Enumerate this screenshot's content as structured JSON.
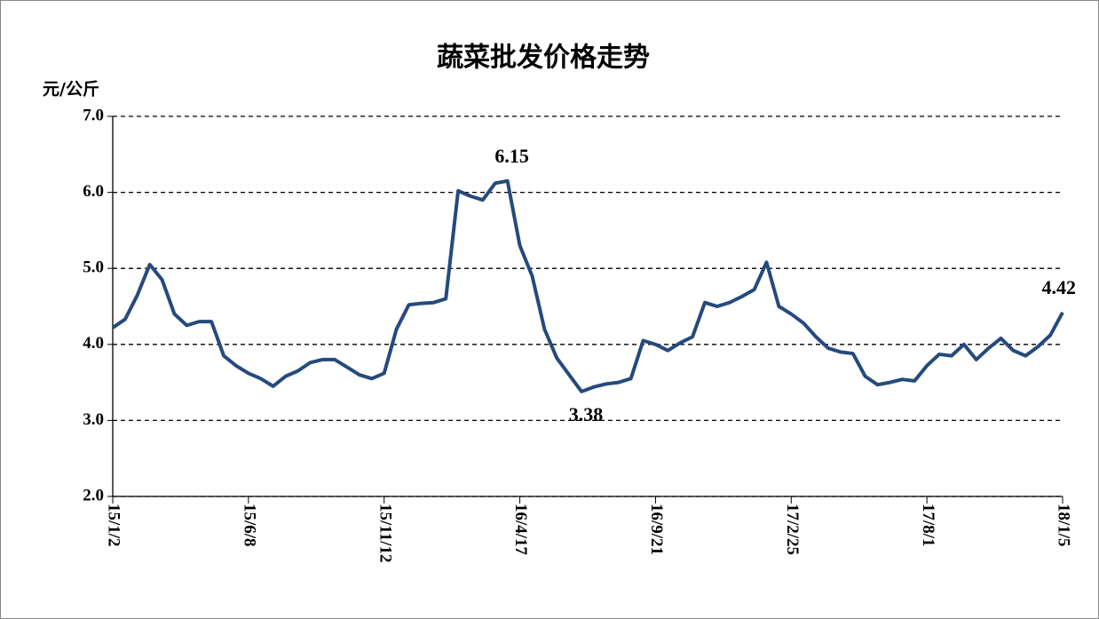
{
  "chart_data": {
    "type": "line",
    "title": "蔬菜批发价格走势",
    "y_label": "元/公斤",
    "categories": [
      "15/1/2",
      null,
      null,
      null,
      null,
      null,
      null,
      null,
      null,
      null,
      null,
      "15/6/8",
      null,
      null,
      null,
      null,
      null,
      null,
      null,
      null,
      null,
      null,
      "15/11/12",
      null,
      null,
      null,
      null,
      null,
      null,
      null,
      null,
      null,
      null,
      "16/4/17",
      null,
      null,
      null,
      null,
      null,
      null,
      null,
      null,
      null,
      null,
      "16/9/21",
      null,
      null,
      null,
      null,
      null,
      null,
      null,
      null,
      null,
      null,
      "17/2/25",
      null,
      null,
      null,
      null,
      null,
      null,
      null,
      null,
      null,
      null,
      "17/8/1",
      null,
      null,
      null,
      null,
      null,
      null,
      null,
      null,
      null,
      null,
      "18/1/5"
    ],
    "series": [
      {
        "color": "#254a7d",
        "values": [
          4.22,
          4.33,
          4.65,
          5.05,
          4.85,
          4.4,
          4.25,
          4.3,
          4.3,
          3.85,
          3.72,
          3.62,
          3.55,
          3.45,
          3.58,
          3.65,
          3.76,
          3.8,
          3.8,
          3.7,
          3.6,
          3.55,
          3.62,
          4.2,
          4.52,
          4.54,
          4.55,
          4.6,
          6.02,
          5.95,
          5.9,
          6.12,
          6.15,
          5.3,
          4.9,
          4.2,
          3.82,
          3.6,
          3.38,
          3.44,
          3.48,
          3.5,
          3.55,
          4.05,
          4.0,
          3.92,
          4.02,
          4.1,
          4.55,
          4.5,
          4.55,
          4.63,
          4.72,
          5.08,
          4.5,
          4.4,
          4.28,
          4.1,
          3.95,
          3.9,
          3.88,
          3.58,
          3.47,
          3.5,
          3.54,
          3.52,
          3.72,
          3.87,
          3.85,
          4.0,
          3.8,
          3.95,
          4.08,
          3.92,
          3.85,
          3.97,
          4.12,
          4.42
        ],
        "value_labels": [
          null,
          null,
          null,
          null,
          null,
          null,
          null,
          null,
          null,
          null,
          null,
          null,
          null,
          null,
          null,
          null,
          null,
          null,
          null,
          null,
          null,
          null,
          null,
          null,
          null,
          null,
          null,
          null,
          null,
          null,
          null,
          null,
          "6.15",
          null,
          null,
          null,
          null,
          null,
          "3.38",
          null,
          null,
          null,
          null,
          null,
          null,
          null,
          null,
          null,
          null,
          null,
          null,
          null,
          null,
          null,
          null,
          null,
          null,
          null,
          null,
          null,
          null,
          null,
          null,
          null,
          null,
          null,
          null,
          null,
          null,
          null,
          null,
          null,
          null,
          null,
          null,
          null,
          null,
          "4.42"
        ]
      }
    ],
    "ylim": [
      2,
      7
    ],
    "yticks": [
      {
        "value": 2,
        "label": "2.0"
      },
      {
        "value": 3,
        "label": "3.0"
      },
      {
        "value": 4,
        "label": "4.0"
      },
      {
        "value": 5,
        "label": "5.0"
      },
      {
        "value": 6,
        "label": "6.0"
      },
      {
        "value": 7,
        "label": "7.0"
      }
    ],
    "grid": true
  }
}
